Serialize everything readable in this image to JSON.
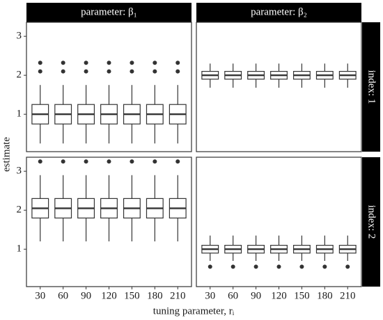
{
  "chart_data": {
    "type": "box",
    "x_label": "tuning parameter, rᵢ",
    "y_label": "estimate",
    "col_labels": [
      "parameter: β₁",
      "parameter: β₂"
    ],
    "row_labels": [
      "index: 1",
      "index: 2"
    ],
    "categories": [
      30,
      60,
      90,
      120,
      150,
      180,
      210
    ],
    "ylim": [
      0.04,
      3.36
    ],
    "yticks": [
      1,
      2,
      3
    ],
    "box_color": "#ffffff",
    "line_color": "#333333",
    "panels": [
      [
        {
          "boxes": [
            {
              "low": 0.25,
              "q1": 0.75,
              "median": 1.0,
              "q3": 1.25,
              "high": 1.75,
              "outliers": [
                2.1,
                2.32
              ]
            },
            {
              "low": 0.25,
              "q1": 0.75,
              "median": 1.0,
              "q3": 1.25,
              "high": 1.75,
              "outliers": [
                2.1,
                2.32
              ]
            },
            {
              "low": 0.25,
              "q1": 0.75,
              "median": 1.0,
              "q3": 1.25,
              "high": 1.75,
              "outliers": [
                2.1,
                2.32
              ]
            },
            {
              "low": 0.25,
              "q1": 0.75,
              "median": 1.0,
              "q3": 1.25,
              "high": 1.75,
              "outliers": [
                2.1,
                2.32
              ]
            },
            {
              "low": 0.25,
              "q1": 0.75,
              "median": 1.0,
              "q3": 1.25,
              "high": 1.75,
              "outliers": [
                2.1,
                2.32
              ]
            },
            {
              "low": 0.25,
              "q1": 0.75,
              "median": 1.0,
              "q3": 1.25,
              "high": 1.75,
              "outliers": [
                2.1,
                2.32
              ]
            },
            {
              "low": 0.25,
              "q1": 0.75,
              "median": 1.0,
              "q3": 1.25,
              "high": 1.75,
              "outliers": [
                2.1,
                2.32
              ]
            }
          ]
        },
        {
          "boxes": [
            {
              "low": 1.68,
              "q1": 1.9,
              "median": 2.0,
              "q3": 2.1,
              "high": 2.3,
              "outliers": []
            },
            {
              "low": 1.68,
              "q1": 1.9,
              "median": 2.0,
              "q3": 2.1,
              "high": 2.3,
              "outliers": []
            },
            {
              "low": 1.68,
              "q1": 1.9,
              "median": 2.0,
              "q3": 2.1,
              "high": 2.3,
              "outliers": []
            },
            {
              "low": 1.68,
              "q1": 1.9,
              "median": 2.0,
              "q3": 2.1,
              "high": 2.3,
              "outliers": []
            },
            {
              "low": 1.68,
              "q1": 1.9,
              "median": 2.0,
              "q3": 2.1,
              "high": 2.3,
              "outliers": []
            },
            {
              "low": 1.68,
              "q1": 1.9,
              "median": 2.0,
              "q3": 2.1,
              "high": 2.3,
              "outliers": []
            },
            {
              "low": 1.68,
              "q1": 1.9,
              "median": 2.0,
              "q3": 2.1,
              "high": 2.3,
              "outliers": []
            }
          ]
        }
      ],
      [
        {
          "boxes": [
            {
              "low": 1.2,
              "q1": 1.8,
              "median": 2.05,
              "q3": 2.3,
              "high": 2.9,
              "outliers": [
                3.25
              ]
            },
            {
              "low": 1.2,
              "q1": 1.8,
              "median": 2.05,
              "q3": 2.3,
              "high": 2.9,
              "outliers": [
                3.25
              ]
            },
            {
              "low": 1.2,
              "q1": 1.8,
              "median": 2.05,
              "q3": 2.3,
              "high": 2.9,
              "outliers": [
                3.25
              ]
            },
            {
              "low": 1.2,
              "q1": 1.8,
              "median": 2.05,
              "q3": 2.3,
              "high": 2.9,
              "outliers": [
                3.25
              ]
            },
            {
              "low": 1.2,
              "q1": 1.8,
              "median": 2.05,
              "q3": 2.3,
              "high": 2.9,
              "outliers": [
                3.25
              ]
            },
            {
              "low": 1.2,
              "q1": 1.8,
              "median": 2.05,
              "q3": 2.3,
              "high": 2.9,
              "outliers": [
                3.25
              ]
            },
            {
              "low": 1.2,
              "q1": 1.8,
              "median": 2.05,
              "q3": 2.3,
              "high": 2.9,
              "outliers": [
                3.25
              ]
            }
          ]
        },
        {
          "boxes": [
            {
              "low": 0.7,
              "q1": 0.9,
              "median": 1.0,
              "q3": 1.1,
              "high": 1.35,
              "outliers": [
                0.55
              ]
            },
            {
              "low": 0.7,
              "q1": 0.9,
              "median": 1.0,
              "q3": 1.1,
              "high": 1.35,
              "outliers": [
                0.55
              ]
            },
            {
              "low": 0.7,
              "q1": 0.9,
              "median": 1.0,
              "q3": 1.1,
              "high": 1.35,
              "outliers": [
                0.55
              ]
            },
            {
              "low": 0.7,
              "q1": 0.9,
              "median": 1.0,
              "q3": 1.1,
              "high": 1.35,
              "outliers": [
                0.55
              ]
            },
            {
              "low": 0.7,
              "q1": 0.9,
              "median": 1.0,
              "q3": 1.1,
              "high": 1.35,
              "outliers": [
                0.55
              ]
            },
            {
              "low": 0.7,
              "q1": 0.9,
              "median": 1.0,
              "q3": 1.1,
              "high": 1.35,
              "outliers": [
                0.55
              ]
            },
            {
              "low": 0.7,
              "q1": 0.9,
              "median": 1.0,
              "q3": 1.1,
              "high": 1.35,
              "outliers": [
                0.55
              ]
            }
          ]
        }
      ]
    ]
  }
}
